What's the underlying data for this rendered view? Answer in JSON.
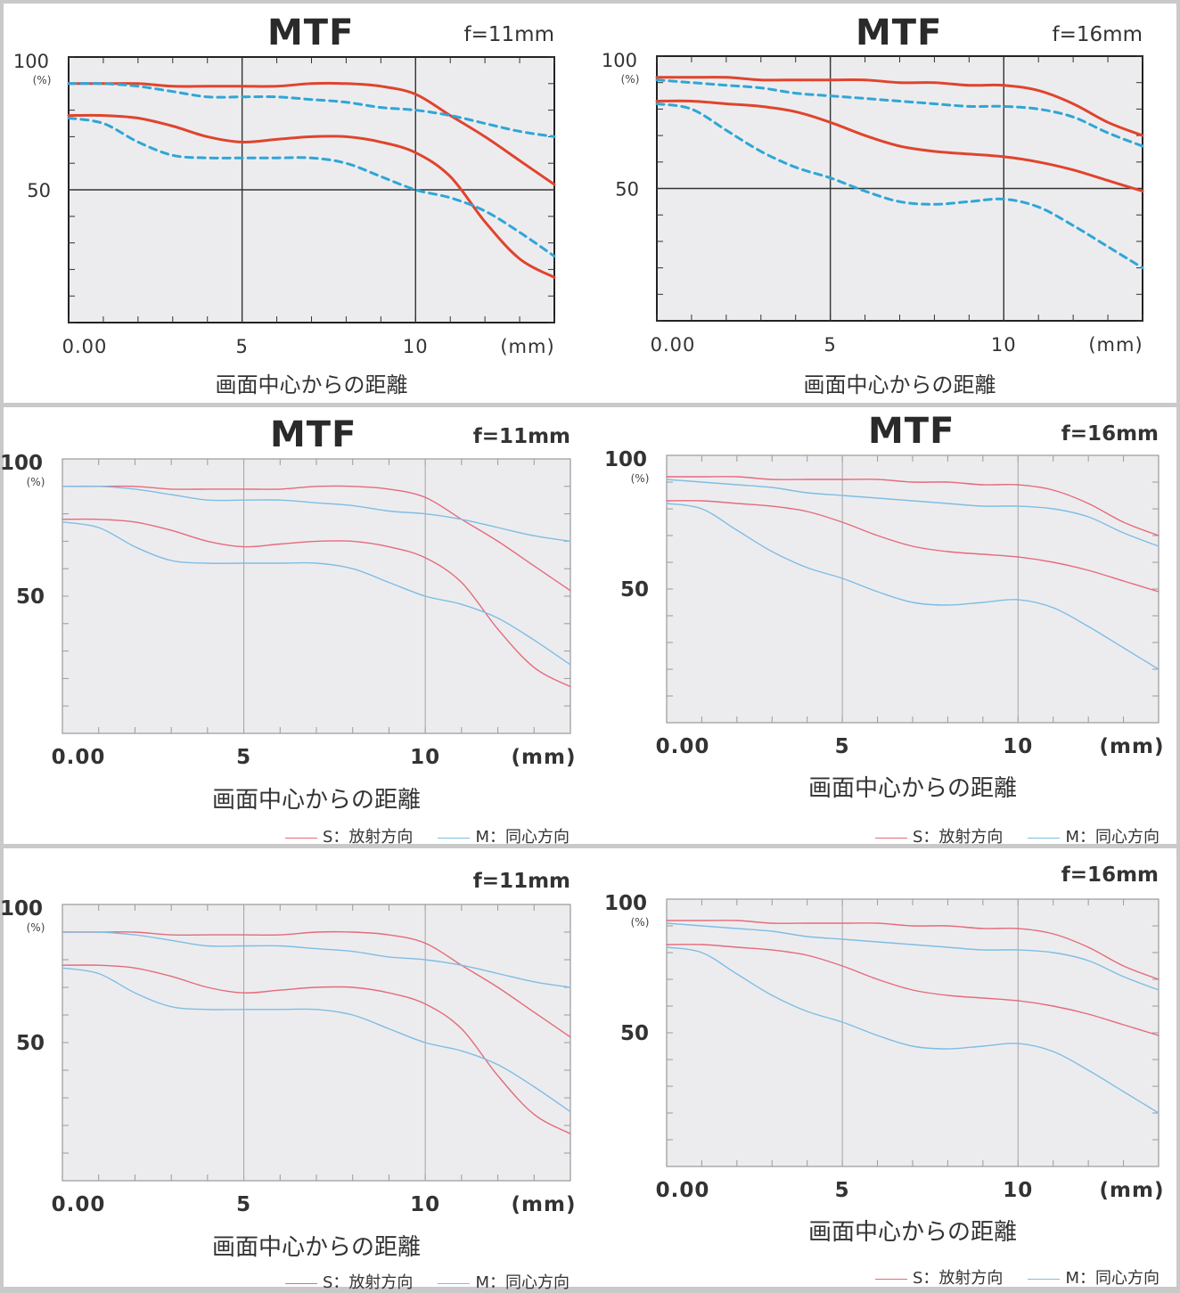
{
  "labels": {
    "mtf": "MTF",
    "pct": "(%)",
    "xlabel": "画面中心からの距離",
    "unit": "(mm)",
    "legend_s": "S：放射方向",
    "legend_m": "M：同心方向"
  },
  "colors": {
    "sagittal": "#e0442c",
    "meridional": "#2fa6d6",
    "thin_s": "#e56b7a",
    "thin_m": "#7fbde4"
  },
  "chart_data": [
    {
      "type": "line",
      "title": "MTF",
      "subtitle": "f=11mm",
      "xlabel": "画面中心からの距離",
      "ylabel": "(%)",
      "xticks": [
        "0.00",
        "5",
        "10",
        "(mm)"
      ],
      "yticks": [
        "100",
        "50"
      ],
      "xlim": [
        0,
        14
      ],
      "ylim": [
        0,
        100
      ],
      "grid": true,
      "series": [
        {
          "kind": "S",
          "x": [
            0,
            1,
            2,
            3,
            4,
            5,
            6,
            7,
            8,
            9,
            10,
            11,
            12,
            13,
            14
          ],
          "values": [
            90,
            90,
            90,
            89,
            89,
            89,
            89,
            90,
            90,
            89,
            86,
            78,
            70,
            61,
            52
          ]
        },
        {
          "kind": "M",
          "x": [
            0,
            1,
            2,
            3,
            4,
            5,
            6,
            7,
            8,
            9,
            10,
            11,
            12,
            13,
            14
          ],
          "values": [
            90,
            90,
            89,
            87,
            85,
            85,
            85,
            84,
            83,
            81,
            80,
            78,
            75,
            72,
            70
          ]
        },
        {
          "kind": "S",
          "x": [
            0,
            1,
            2,
            3,
            4,
            5,
            6,
            7,
            8,
            9,
            10,
            11,
            12,
            13,
            14
          ],
          "values": [
            78,
            78,
            77,
            74,
            70,
            68,
            69,
            70,
            70,
            68,
            64,
            55,
            38,
            24,
            17
          ]
        },
        {
          "kind": "M",
          "x": [
            0,
            1,
            2,
            3,
            4,
            5,
            6,
            7,
            8,
            9,
            10,
            11,
            12,
            13,
            14
          ],
          "values": [
            77,
            75,
            68,
            63,
            62,
            62,
            62,
            62,
            60,
            55,
            50,
            47,
            42,
            34,
            25
          ]
        }
      ]
    },
    {
      "type": "line",
      "title": "MTF",
      "subtitle": "f=16mm",
      "xlabel": "画面中心からの距離",
      "ylabel": "(%)",
      "xticks": [
        "0.00",
        "5",
        "10",
        "(mm)"
      ],
      "yticks": [
        "100",
        "50"
      ],
      "xlim": [
        0,
        14
      ],
      "ylim": [
        0,
        100
      ],
      "grid": true,
      "series": [
        {
          "kind": "S",
          "x": [
            0,
            1,
            2,
            3,
            4,
            5,
            6,
            7,
            8,
            9,
            10,
            11,
            12,
            13,
            14
          ],
          "values": [
            92,
            92,
            92,
            91,
            91,
            91,
            91,
            90,
            90,
            89,
            89,
            87,
            82,
            75,
            70
          ]
        },
        {
          "kind": "M",
          "x": [
            0,
            1,
            2,
            3,
            4,
            5,
            6,
            7,
            8,
            9,
            10,
            11,
            12,
            13,
            14
          ],
          "values": [
            91,
            90,
            89,
            88,
            86,
            85,
            84,
            83,
            82,
            81,
            81,
            80,
            77,
            71,
            66
          ]
        },
        {
          "kind": "S",
          "x": [
            0,
            1,
            2,
            3,
            4,
            5,
            6,
            7,
            8,
            9,
            10,
            11,
            12,
            13,
            14
          ],
          "values": [
            83,
            83,
            82,
            81,
            79,
            75,
            70,
            66,
            64,
            63,
            62,
            60,
            57,
            53,
            49
          ]
        },
        {
          "kind": "M",
          "x": [
            0,
            1,
            2,
            3,
            4,
            5,
            6,
            7,
            8,
            9,
            10,
            11,
            12,
            13,
            14
          ],
          "values": [
            82,
            80,
            72,
            64,
            58,
            54,
            49,
            45,
            44,
            45,
            46,
            43,
            36,
            28,
            20
          ]
        }
      ]
    },
    {
      "type": "line",
      "title": "MTF",
      "subtitle": "f=11mm",
      "xlabel": "画面中心からの距離",
      "ylabel": "(%)",
      "xticks": [
        "0.00",
        "5",
        "10",
        "(mm)"
      ],
      "yticks": [
        "100",
        "50"
      ],
      "xlim": [
        0,
        14
      ],
      "ylim": [
        0,
        100
      ],
      "grid": true,
      "legend": [
        "S：放射方向",
        "M：同心方向"
      ],
      "series": [
        {
          "kind": "S",
          "name": "S：放射方向",
          "x": [
            0,
            1,
            2,
            3,
            4,
            5,
            6,
            7,
            8,
            9,
            10,
            11,
            12,
            13,
            14
          ],
          "values": [
            90,
            90,
            90,
            89,
            89,
            89,
            89,
            90,
            90,
            89,
            86,
            78,
            70,
            61,
            52
          ]
        },
        {
          "kind": "M",
          "name": "M：同心方向",
          "x": [
            0,
            1,
            2,
            3,
            4,
            5,
            6,
            7,
            8,
            9,
            10,
            11,
            12,
            13,
            14
          ],
          "values": [
            90,
            90,
            89,
            87,
            85,
            85,
            85,
            84,
            83,
            81,
            80,
            78,
            75,
            72,
            70
          ]
        },
        {
          "kind": "S",
          "x": [
            0,
            1,
            2,
            3,
            4,
            5,
            6,
            7,
            8,
            9,
            10,
            11,
            12,
            13,
            14
          ],
          "values": [
            78,
            78,
            77,
            74,
            70,
            68,
            69,
            70,
            70,
            68,
            64,
            55,
            38,
            24,
            17
          ]
        },
        {
          "kind": "M",
          "x": [
            0,
            1,
            2,
            3,
            4,
            5,
            6,
            7,
            8,
            9,
            10,
            11,
            12,
            13,
            14
          ],
          "values": [
            77,
            75,
            68,
            63,
            62,
            62,
            62,
            62,
            60,
            55,
            50,
            47,
            42,
            34,
            25
          ]
        }
      ]
    },
    {
      "type": "line",
      "title": "MTF",
      "subtitle": "f=16mm",
      "xlabel": "画面中心からの距離",
      "ylabel": "(%)",
      "xticks": [
        "0.00",
        "5",
        "10",
        "(mm)"
      ],
      "yticks": [
        "100",
        "50"
      ],
      "xlim": [
        0,
        14
      ],
      "ylim": [
        0,
        100
      ],
      "grid": true,
      "legend": [
        "S：放射方向",
        "M：同心方向"
      ],
      "series": [
        {
          "kind": "S",
          "name": "S：放射方向",
          "x": [
            0,
            1,
            2,
            3,
            4,
            5,
            6,
            7,
            8,
            9,
            10,
            11,
            12,
            13,
            14
          ],
          "values": [
            92,
            92,
            92,
            91,
            91,
            91,
            91,
            90,
            90,
            89,
            89,
            87,
            82,
            75,
            70
          ]
        },
        {
          "kind": "M",
          "name": "M：同心方向",
          "x": [
            0,
            1,
            2,
            3,
            4,
            5,
            6,
            7,
            8,
            9,
            10,
            11,
            12,
            13,
            14
          ],
          "values": [
            91,
            90,
            89,
            88,
            86,
            85,
            84,
            83,
            82,
            81,
            81,
            80,
            77,
            71,
            66
          ]
        },
        {
          "kind": "S",
          "x": [
            0,
            1,
            2,
            3,
            4,
            5,
            6,
            7,
            8,
            9,
            10,
            11,
            12,
            13,
            14
          ],
          "values": [
            83,
            83,
            82,
            81,
            79,
            75,
            70,
            66,
            64,
            63,
            62,
            60,
            57,
            53,
            49
          ]
        },
        {
          "kind": "M",
          "x": [
            0,
            1,
            2,
            3,
            4,
            5,
            6,
            7,
            8,
            9,
            10,
            11,
            12,
            13,
            14
          ],
          "values": [
            82,
            80,
            72,
            64,
            58,
            54,
            49,
            45,
            44,
            45,
            46,
            43,
            36,
            28,
            20
          ]
        }
      ]
    },
    {
      "type": "line",
      "subtitle": "f=11mm",
      "xlabel": "画面中心からの距離",
      "ylabel": "(%)",
      "xticks": [
        "0.00",
        "5",
        "10",
        "(mm)"
      ],
      "yticks": [
        "100",
        "50"
      ],
      "xlim": [
        0,
        14
      ],
      "ylim": [
        0,
        100
      ],
      "grid": true,
      "legend": [
        "S：放射方向",
        "M：同心方向"
      ],
      "series": [
        {
          "kind": "S",
          "name": "S：放射方向",
          "x": [
            0,
            1,
            2,
            3,
            4,
            5,
            6,
            7,
            8,
            9,
            10,
            11,
            12,
            13,
            14
          ],
          "values": [
            90,
            90,
            90,
            89,
            89,
            89,
            89,
            90,
            90,
            89,
            86,
            78,
            70,
            61,
            52
          ]
        },
        {
          "kind": "M",
          "name": "M：同心方向",
          "x": [
            0,
            1,
            2,
            3,
            4,
            5,
            6,
            7,
            8,
            9,
            10,
            11,
            12,
            13,
            14
          ],
          "values": [
            90,
            90,
            89,
            87,
            85,
            85,
            85,
            84,
            83,
            81,
            80,
            78,
            75,
            72,
            70
          ]
        },
        {
          "kind": "S",
          "x": [
            0,
            1,
            2,
            3,
            4,
            5,
            6,
            7,
            8,
            9,
            10,
            11,
            12,
            13,
            14
          ],
          "values": [
            78,
            78,
            77,
            74,
            70,
            68,
            69,
            70,
            70,
            68,
            64,
            55,
            38,
            24,
            17
          ]
        },
        {
          "kind": "M",
          "x": [
            0,
            1,
            2,
            3,
            4,
            5,
            6,
            7,
            8,
            9,
            10,
            11,
            12,
            13,
            14
          ],
          "values": [
            77,
            75,
            68,
            63,
            62,
            62,
            62,
            62,
            60,
            55,
            50,
            47,
            42,
            34,
            25
          ]
        }
      ]
    },
    {
      "type": "line",
      "subtitle": "f=16mm",
      "xlabel": "画面中心からの距離",
      "ylabel": "(%)",
      "xticks": [
        "0.00",
        "5",
        "10",
        "(mm)"
      ],
      "yticks": [
        "100",
        "50"
      ],
      "xlim": [
        0,
        14
      ],
      "ylim": [
        0,
        100
      ],
      "grid": true,
      "legend": [
        "S：放射方向",
        "M：同心方向"
      ],
      "series": [
        {
          "kind": "S",
          "name": "S：放射方向",
          "x": [
            0,
            1,
            2,
            3,
            4,
            5,
            6,
            7,
            8,
            9,
            10,
            11,
            12,
            13,
            14
          ],
          "values": [
            92,
            92,
            92,
            91,
            91,
            91,
            91,
            90,
            90,
            89,
            89,
            87,
            82,
            75,
            70
          ]
        },
        {
          "kind": "M",
          "name": "M：同心方向",
          "x": [
            0,
            1,
            2,
            3,
            4,
            5,
            6,
            7,
            8,
            9,
            10,
            11,
            12,
            13,
            14
          ],
          "values": [
            91,
            90,
            89,
            88,
            86,
            85,
            84,
            83,
            82,
            81,
            81,
            80,
            77,
            71,
            66
          ]
        },
        {
          "kind": "S",
          "x": [
            0,
            1,
            2,
            3,
            4,
            5,
            6,
            7,
            8,
            9,
            10,
            11,
            12,
            13,
            14
          ],
          "values": [
            83,
            83,
            82,
            81,
            79,
            75,
            70,
            66,
            64,
            63,
            62,
            60,
            57,
            53,
            49
          ]
        },
        {
          "kind": "M",
          "x": [
            0,
            1,
            2,
            3,
            4,
            5,
            6,
            7,
            8,
            9,
            10,
            11,
            12,
            13,
            14
          ],
          "values": [
            82,
            80,
            72,
            64,
            58,
            54,
            49,
            45,
            44,
            45,
            46,
            43,
            36,
            28,
            20
          ]
        }
      ]
    }
  ]
}
